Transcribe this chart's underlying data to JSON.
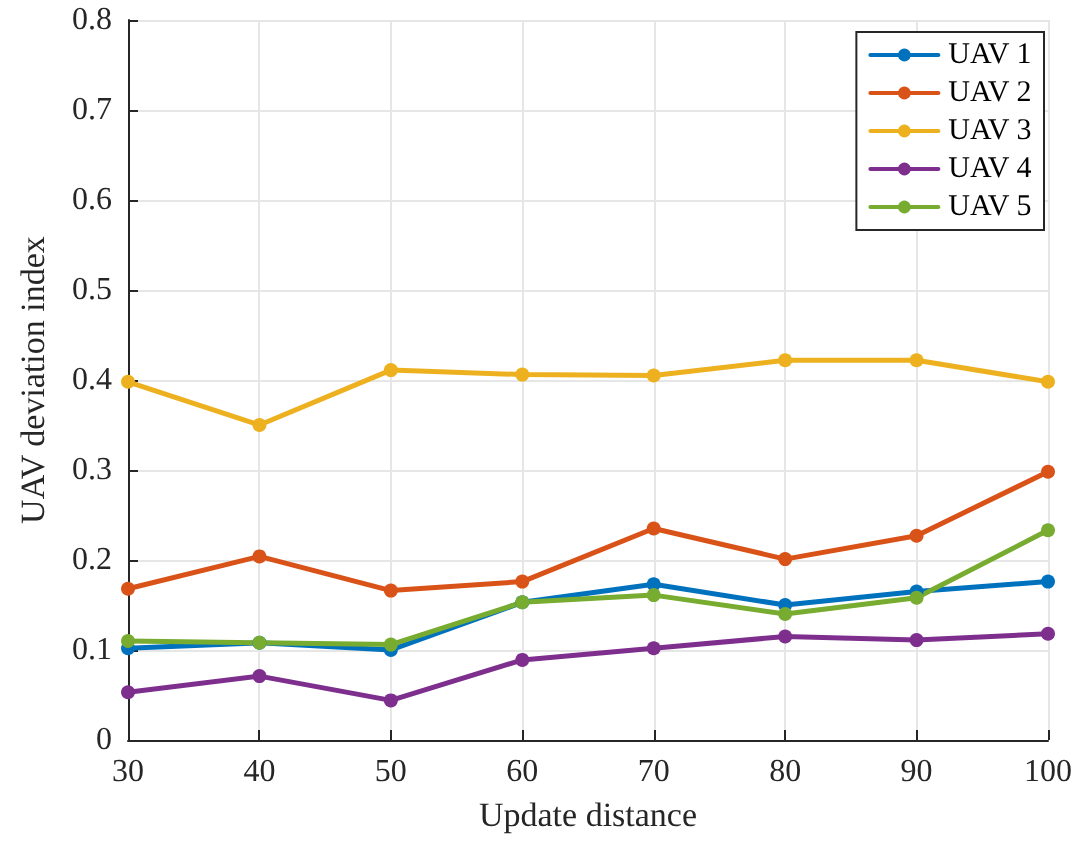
{
  "chart_data": {
    "type": "line",
    "xlabel": "Update distance",
    "ylabel": "UAV deviation index",
    "x": [
      30,
      40,
      50,
      60,
      70,
      80,
      90,
      100
    ],
    "series": [
      {
        "name": "UAV 1",
        "color": "#0072bd",
        "values": [
          0.102,
          0.108,
          0.1,
          0.153,
          0.173,
          0.15,
          0.165,
          0.176
        ]
      },
      {
        "name": "UAV 2",
        "color": "#d95319",
        "values": [
          0.168,
          0.204,
          0.166,
          0.176,
          0.235,
          0.201,
          0.227,
          0.298
        ]
      },
      {
        "name": "UAV 3",
        "color": "#edb120",
        "values": [
          0.398,
          0.35,
          0.411,
          0.406,
          0.405,
          0.422,
          0.422,
          0.398
        ]
      },
      {
        "name": "UAV 4",
        "color": "#7e2f8e",
        "values": [
          0.053,
          0.071,
          0.044,
          0.089,
          0.102,
          0.115,
          0.111,
          0.118
        ]
      },
      {
        "name": "UAV 5",
        "color": "#77ac30",
        "values": [
          0.11,
          0.108,
          0.106,
          0.153,
          0.161,
          0.14,
          0.158,
          0.233
        ]
      }
    ],
    "xlim": [
      30,
      100
    ],
    "xticks": [
      30,
      40,
      50,
      60,
      70,
      80,
      90,
      100
    ],
    "ylim": [
      0,
      0.8
    ],
    "yticks": [
      0,
      0.1,
      0.2,
      0.3,
      0.4,
      0.5,
      0.6,
      0.7,
      0.8
    ],
    "grid": true,
    "legend": "top right",
    "marker": "circle",
    "line_style": "solid"
  }
}
